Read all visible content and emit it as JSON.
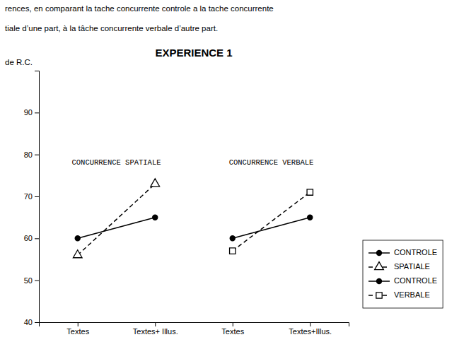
{
  "chart_data": {
    "type": "line",
    "title": "EXPERIENCE 1",
    "subtitle": [
      "rences,  en  comparant  la  tache  concurrente  controle  a  la  tache  concurrente",
      "tiale d’une part, à la tâche concurrente verbale d’autre part."
    ],
    "y_label": "de R.C.",
    "categories": [
      "Textes",
      "Textes+ Illus.",
      "Textes",
      "Textes+Illus."
    ],
    "series": [
      {
        "name": "CONTROLE",
        "color": "#000000",
        "marker": "circle",
        "line_style": "solid",
        "values": [
          60,
          65,
          null,
          null
        ]
      },
      {
        "name": "SPATIALE",
        "color": "#000000",
        "marker": "triangle-open",
        "line_style": "dashed",
        "values": [
          56,
          73,
          null,
          null
        ]
      },
      {
        "name": "CONTROLE",
        "color": "#000000",
        "marker": "circle",
        "line_style": "solid",
        "values": [
          null,
          null,
          60,
          65
        ]
      },
      {
        "name": "VERBALE",
        "color": "#000000",
        "marker": "square-open",
        "line_style": "dashed",
        "values": [
          null,
          null,
          57,
          71
        ]
      }
    ],
    "annotations": [
      {
        "text": "CONCURRENCE SPATIALE",
        "y": 78
      },
      {
        "text": "CONCURRENCE VERBALE",
        "y": 78
      }
    ],
    "ylim": [
      40,
      100
    ],
    "yticks": [
      40,
      50,
      60,
      70,
      80,
      90
    ],
    "grid": false,
    "legend": "lower right"
  }
}
